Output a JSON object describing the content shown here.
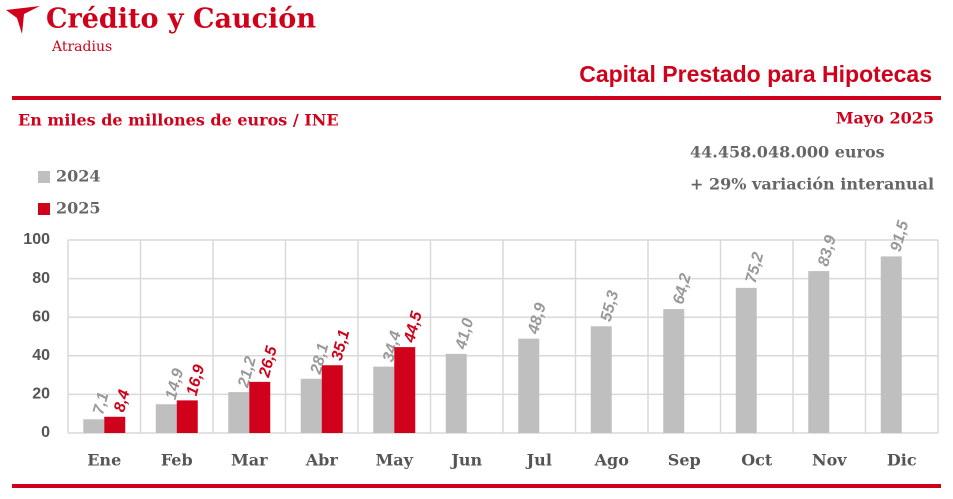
{
  "brand": {
    "name": "Crédito y Caución",
    "sub": "Atradius"
  },
  "chart_data": {
    "type": "bar",
    "title": "Capital Prestado para Hipotecas",
    "subtitle": "En miles de millones de euros / INE",
    "date": "Mayo 2025",
    "annotations": [
      "44.458.048.000  euros",
      "+ 29% variación interanual"
    ],
    "categories": [
      "Ene",
      "Feb",
      "Mar",
      "Abr",
      "May",
      "Jun",
      "Jul",
      "Ago",
      "Sep",
      "Oct",
      "Nov",
      "Dic"
    ],
    "series": [
      {
        "name": "2024",
        "color": "#bfbfbf",
        "values": [
          7.1,
          14.9,
          21.2,
          28.1,
          34.4,
          41.0,
          48.9,
          55.3,
          64.2,
          75.2,
          83.9,
          91.5
        ],
        "value_labels": [
          "7,1",
          "14,9",
          "21,2",
          "28,1",
          "34,4",
          "41,0",
          "48,9",
          "55,3",
          "64,2",
          "75,2",
          "83,9",
          "91,5"
        ]
      },
      {
        "name": "2025",
        "color": "#d0021b",
        "values": [
          8.4,
          16.9,
          26.5,
          35.1,
          44.5,
          null,
          null,
          null,
          null,
          null,
          null,
          null
        ],
        "value_labels": [
          "8,4",
          "16,9",
          "26,5",
          "35,1",
          "44,5",
          null,
          null,
          null,
          null,
          null,
          null,
          null
        ]
      }
    ],
    "ylim": [
      0,
      100
    ],
    "yticks": [
      0,
      20,
      40,
      60,
      80,
      100
    ],
    "grid": true,
    "legend": "upper left"
  }
}
